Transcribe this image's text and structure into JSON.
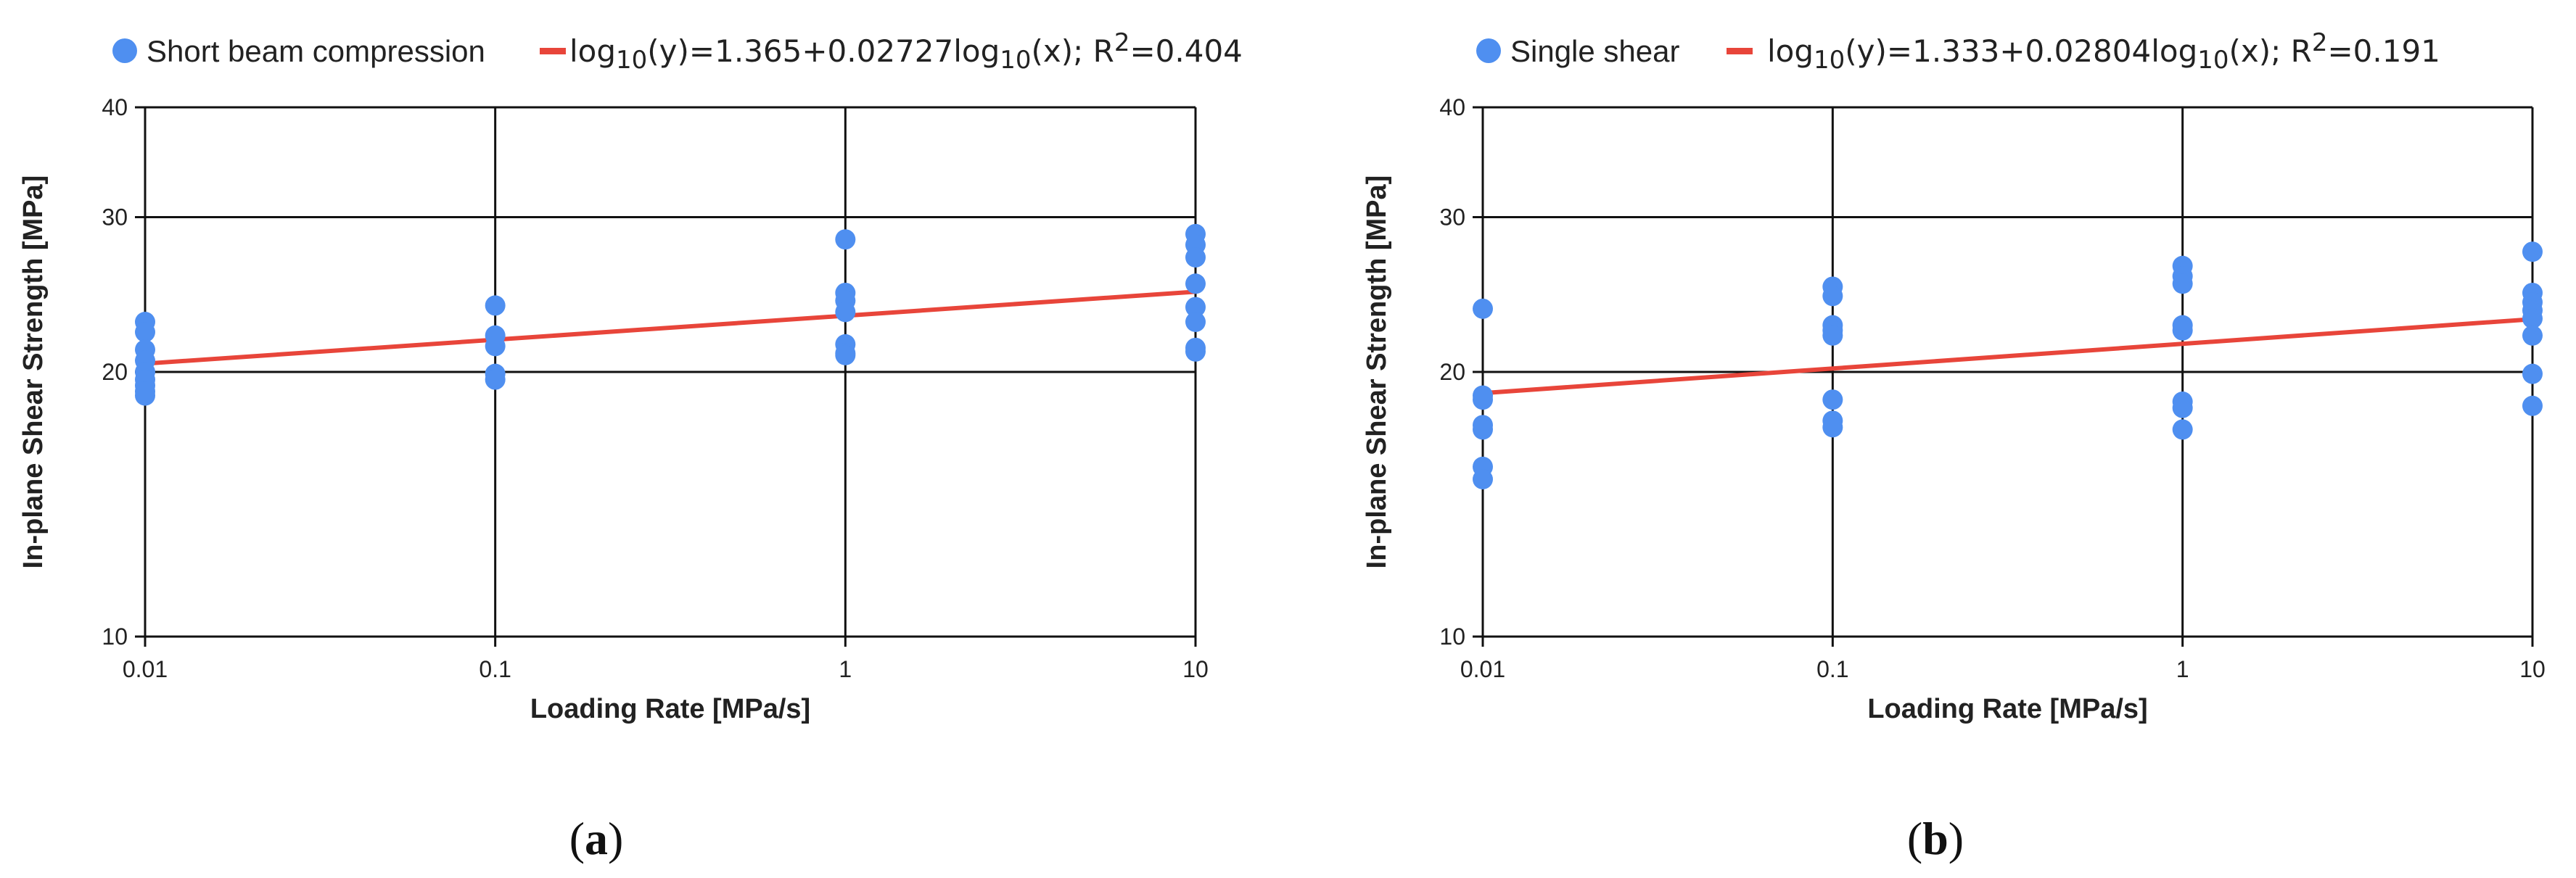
{
  "chart_data": [
    {
      "type": "scatter",
      "panel_label": "(a)",
      "panel_letter": "a",
      "xlabel": "Loading Rate [MPa/s]",
      "ylabel": "In-plane Shear Strength [MPa]",
      "x_scale": "log",
      "y_scale": "log",
      "xlim": [
        0.01,
        10
      ],
      "ylim": [
        10,
        40
      ],
      "x_ticks": [
        "0.01",
        "0.1",
        "1",
        "10"
      ],
      "y_ticks": [
        "10",
        "20",
        "30",
        "40"
      ],
      "grid": true,
      "legend_position": "top",
      "series": [
        {
          "name": "Short beam compression",
          "kind": "points",
          "color": "#4f8ff0",
          "x": [
            0.01,
            0.01,
            0.01,
            0.01,
            0.01,
            0.01,
            0.01,
            0.01,
            0.01,
            0.1,
            0.1,
            0.1,
            0.1,
            0.1,
            1,
            1,
            1,
            1,
            1,
            1,
            1,
            10,
            10,
            10,
            10,
            10,
            10,
            10,
            10
          ],
          "y": [
            22.8,
            22.2,
            21.2,
            20.6,
            20.0,
            19.6,
            19.3,
            19.0,
            18.8,
            23.8,
            22.0,
            21.4,
            19.9,
            19.6,
            28.3,
            24.6,
            24.1,
            23.4,
            21.5,
            21.0,
            20.9,
            28.7,
            27.9,
            27.0,
            25.2,
            23.7,
            22.8,
            21.3,
            21.1
          ]
        },
        {
          "name_parts": {
            "pre": "log",
            "sub1": "10",
            "mid": "(y)=1.365+0.02727log",
            "sub2": "10",
            "post": "(x); R",
            "sup": "2",
            "end": "=0.404"
          },
          "kind": "fit",
          "color": "#e8453a",
          "intercept": 1.365,
          "slope": 0.02727
        }
      ]
    },
    {
      "type": "scatter",
      "panel_label": "(b)",
      "panel_letter": "b",
      "xlabel": "Loading Rate [MPa/s]",
      "ylabel": "In-plane Shear Strength [MPa]",
      "x_scale": "log",
      "y_scale": "log",
      "xlim": [
        0.01,
        10
      ],
      "ylim": [
        10,
        40
      ],
      "x_ticks": [
        "0.01",
        "0.1",
        "1",
        "10"
      ],
      "y_ticks": [
        "10",
        "20",
        "30",
        "40"
      ],
      "grid": true,
      "legend_position": "top",
      "series": [
        {
          "name": "Single shear",
          "kind": "points",
          "color": "#4f8ff0",
          "x": [
            0.01,
            0.01,
            0.01,
            0.01,
            0.01,
            0.01,
            0.01,
            0.1,
            0.1,
            0.1,
            0.1,
            0.1,
            0.1,
            0.1,
            0.1,
            1,
            1,
            1,
            1,
            1,
            1,
            1,
            1,
            10,
            10,
            10,
            10,
            10,
            10,
            10,
            10
          ],
          "y": [
            23.6,
            18.8,
            18.6,
            17.4,
            17.2,
            15.6,
            15.1,
            25.0,
            24.4,
            22.6,
            22.3,
            22.0,
            18.6,
            17.6,
            17.3,
            26.4,
            25.7,
            25.2,
            22.6,
            22.3,
            18.5,
            18.2,
            17.2,
            27.4,
            24.6,
            24.0,
            23.5,
            23.0,
            22.0,
            19.9,
            18.3
          ]
        },
        {
          "name_parts": {
            "pre": "log",
            "sub1": "10",
            "mid": "(y)=1.333+0.02804log",
            "sub2": "10",
            "post": "(x); R",
            "sup": "2",
            "end": "=0.191"
          },
          "kind": "fit",
          "color": "#e8453a",
          "intercept": 1.333,
          "slope": 0.02804
        }
      ]
    }
  ]
}
